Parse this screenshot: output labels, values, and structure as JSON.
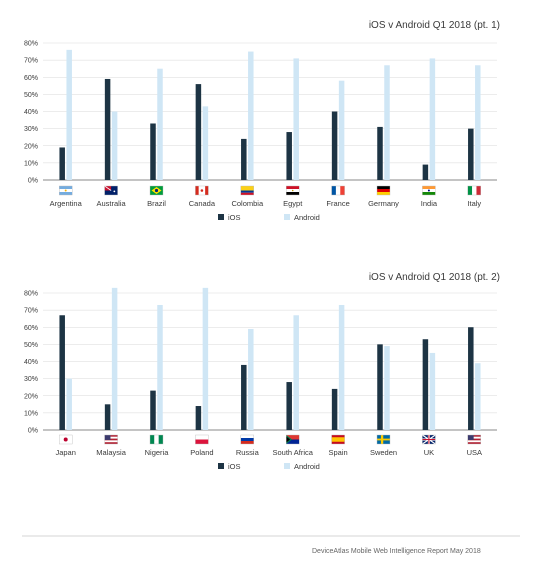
{
  "colors": {
    "ios": "#1d3444",
    "android": "#cfe6f5",
    "grid": "#d9d9d9",
    "axis": "#888888",
    "text": "#3a3a3a",
    "footer_rule": "#c8c8c8"
  },
  "chart_data": [
    {
      "type": "bar",
      "title": "iOS v Android Q1 2018  (pt. 1)",
      "categories": [
        "Argentina",
        "Australia",
        "Brazil",
        "Canada",
        "Colombia",
        "Egypt",
        "France",
        "Germany",
        "India",
        "Italy"
      ],
      "flag_icons": [
        "argentina-flag-icon",
        "australia-flag-icon",
        "brazil-flag-icon",
        "canada-flag-icon",
        "colombia-flag-icon",
        "egypt-flag-icon",
        "france-flag-icon",
        "germany-flag-icon",
        "india-flag-icon",
        "italy-flag-icon"
      ],
      "series": [
        {
          "name": "iOS",
          "values": [
            19,
            59,
            33,
            56,
            24,
            28,
            40,
            31,
            9,
            30
          ]
        },
        {
          "name": "Android",
          "values": [
            76,
            40,
            65,
            43,
            75,
            71,
            58,
            67,
            71,
            67
          ]
        }
      ],
      "yticks": [
        "0%",
        "10%",
        "20%",
        "30%",
        "40%",
        "50%",
        "60%",
        "70%",
        "80%"
      ],
      "ylim": [
        0,
        80
      ],
      "grid": true,
      "legend": "bottom-center"
    },
    {
      "type": "bar",
      "title": "iOS v Android Q1 2018 (pt. 2)",
      "categories": [
        "Japan",
        "Malaysia",
        "Nigeria",
        "Poland",
        "Russia",
        "South Africa",
        "Spain",
        "Sweden",
        "UK",
        "USA"
      ],
      "flag_icons": [
        "japan-flag-icon",
        "usa-flag-icon",
        "nigeria-flag-icon",
        "poland-flag-icon",
        "russia-flag-icon",
        "south-africa-flag-icon",
        "spain-flag-icon",
        "sweden-flag-icon",
        "uk-flag-icon",
        "usa-flag-icon"
      ],
      "series": [
        {
          "name": "iOS",
          "values": [
            67,
            15,
            23,
            14,
            38,
            28,
            24,
            50,
            53,
            60
          ]
        },
        {
          "name": "Android",
          "values": [
            30,
            83,
            73,
            83,
            59,
            67,
            73,
            49,
            45,
            39
          ]
        }
      ],
      "yticks": [
        "0%",
        "10%",
        "20%",
        "30%",
        "40%",
        "50%",
        "60%",
        "70%",
        "80%"
      ],
      "ylim": [
        0,
        80
      ],
      "grid": true,
      "legend": "bottom-center"
    }
  ],
  "footer": {
    "text": "DeviceAtlas Mobile Web Intelligence Report May 2018"
  }
}
